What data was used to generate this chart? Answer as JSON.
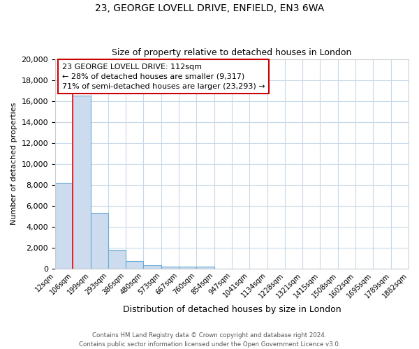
{
  "title1": "23, GEORGE LOVELL DRIVE, ENFIELD, EN3 6WA",
  "title2": "Size of property relative to detached houses in London",
  "xlabel": "Distribution of detached houses by size in London",
  "ylabel": "Number of detached properties",
  "bin_labels": [
    "12sqm",
    "106sqm",
    "199sqm",
    "293sqm",
    "386sqm",
    "480sqm",
    "573sqm",
    "667sqm",
    "760sqm",
    "854sqm",
    "947sqm",
    "1041sqm",
    "1134sqm",
    "1228sqm",
    "1321sqm",
    "1415sqm",
    "1508sqm",
    "1602sqm",
    "1695sqm",
    "1789sqm",
    "1882sqm"
  ],
  "bar_values": [
    8200,
    16500,
    5300,
    1750,
    700,
    300,
    200,
    150,
    150,
    0,
    0,
    0,
    0,
    0,
    0,
    0,
    0,
    0,
    0,
    0
  ],
  "bar_color": "#ccdcee",
  "bar_edge_color": "#6aaad4",
  "red_line_x": 1,
  "annotation_text": "23 GEORGE LOVELL DRIVE: 112sqm\n← 28% of detached houses are smaller (9,317)\n71% of semi-detached houses are larger (23,293) →",
  "annotation_box_color": "#ffffff",
  "annotation_edge_color": "#cc0000",
  "ylim": [
    0,
    20000
  ],
  "yticks": [
    0,
    2000,
    4000,
    6000,
    8000,
    10000,
    12000,
    14000,
    16000,
    18000,
    20000
  ],
  "footer1": "Contains HM Land Registry data © Crown copyright and database right 2024.",
  "footer2": "Contains public sector information licensed under the Open Government Licence v3.0.",
  "plot_bg_color": "#ffffff",
  "fig_bg_color": "#ffffff",
  "grid_color": "#c8d8e8"
}
